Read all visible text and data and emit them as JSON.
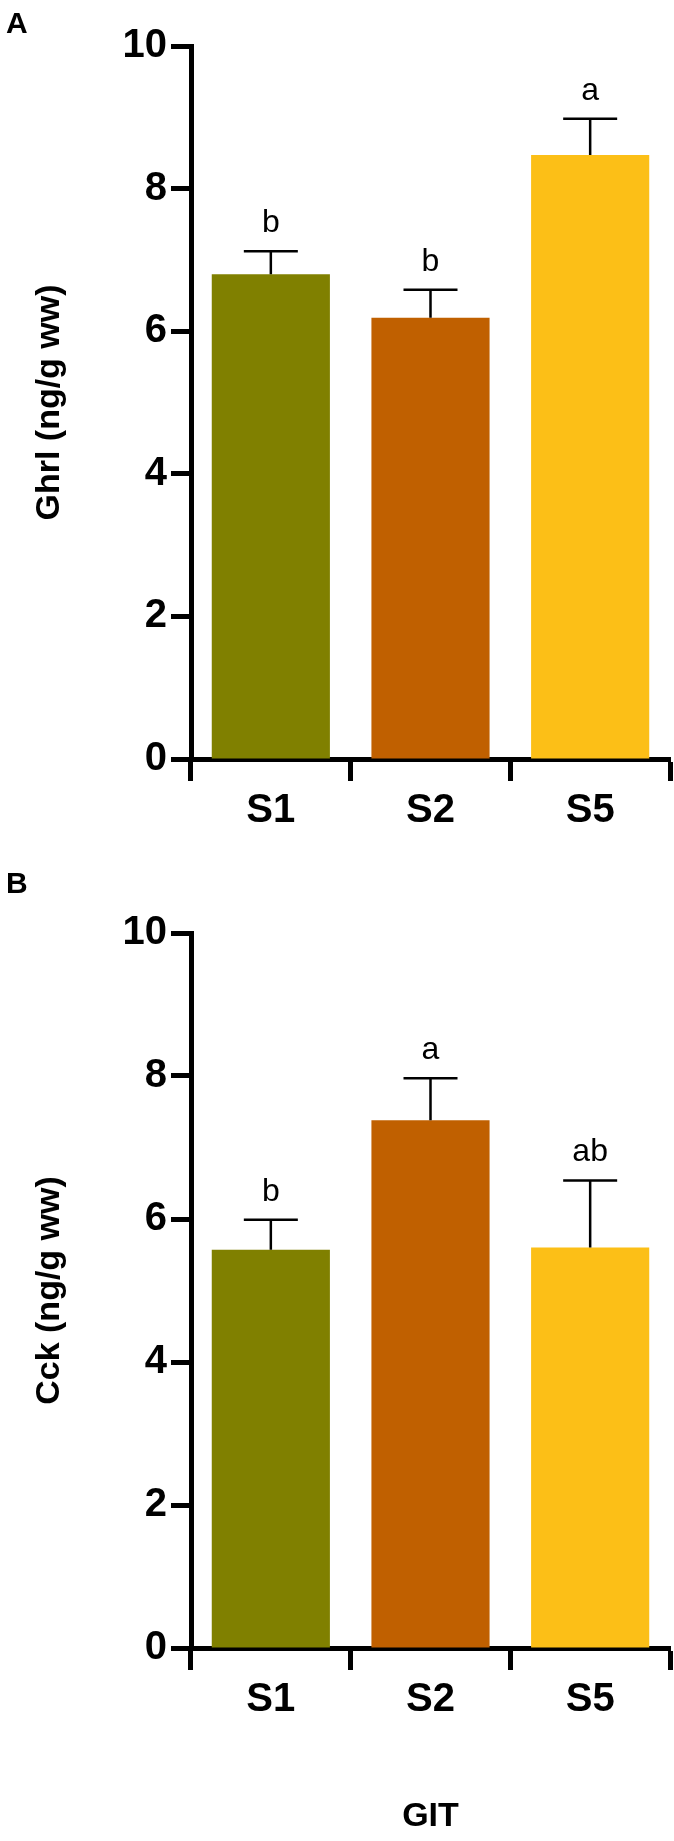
{
  "chart_data": [
    {
      "type": "bar",
      "title": "A",
      "ylabel": "Ghrl (ng/g ww)",
      "categories": [
        "S1",
        "S2",
        "S5"
      ],
      "values": [
        6.8,
        6.19,
        8.47
      ],
      "colors": [
        "#808000",
        "#c06000",
        "#fcbf17"
      ],
      "errors": [
        [
          6.8,
          7.12
        ],
        [
          6.19,
          6.58
        ],
        [
          8.47,
          8.98
        ]
      ],
      "ylim": [
        0,
        10
      ],
      "yticks": [
        0,
        2,
        4,
        6,
        8,
        10
      ],
      "grid": false,
      "legend": false,
      "annotations": [
        "b",
        "b",
        "a"
      ]
    },
    {
      "type": "bar",
      "title": "B",
      "ylabel": "Cck (ng/g ww)",
      "xlabel": "GIT",
      "categories": [
        "S1",
        "S2",
        "S5"
      ],
      "values": [
        5.57,
        7.38,
        5.6
      ],
      "colors": [
        "#808000",
        "#c06000",
        "#fcbf17"
      ],
      "errors": [
        [
          5.57,
          5.99
        ],
        [
          7.38,
          7.97
        ],
        [
          5.6,
          6.54
        ]
      ],
      "ylim": [
        0,
        10
      ],
      "yticks": [
        0,
        2,
        4,
        6,
        8,
        10
      ],
      "grid": false,
      "legend": false,
      "annotations": [
        "b",
        "a",
        "ab"
      ]
    }
  ]
}
